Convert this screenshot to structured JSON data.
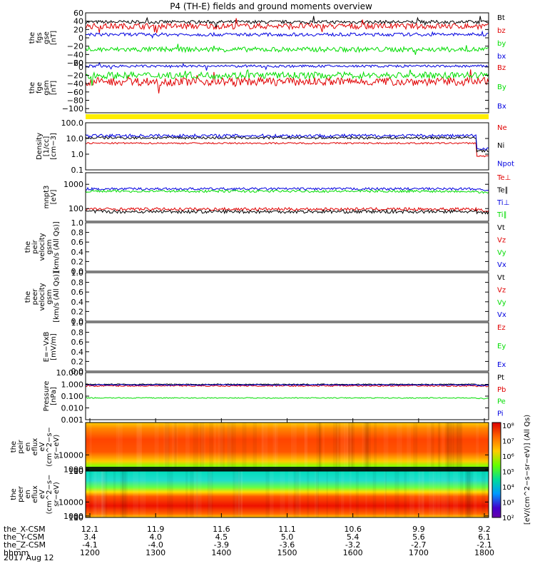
{
  "title": "P4 (TH-E) fields and ground moments overview",
  "date": "2017 Aug 12",
  "colors": {
    "black": "#000000",
    "red": "#e00000",
    "green": "#00dd00",
    "blue": "#0000e0",
    "yellow": "#ffee00"
  },
  "chart_data": {
    "type": "line",
    "x_range": [
      "12:00",
      "18:00"
    ],
    "x_ticks": [
      "1200",
      "1300",
      "1400",
      "1500",
      "1600",
      "1700",
      "1800"
    ],
    "ephemeris": [
      {
        "label": "the_X-CSM",
        "values": [
          "12.1",
          "11.9",
          "11.6",
          "11.1",
          "10.6",
          "9.9",
          "9.2"
        ]
      },
      {
        "label": "the_Y-CSM",
        "values": [
          "3.4",
          "4.0",
          "4.5",
          "5.0",
          "5.4",
          "5.6",
          "6.1"
        ]
      },
      {
        "label": "the_Z-CSM",
        "values": [
          "-4.1",
          "-4.0",
          "-3.9",
          "-3.6",
          "-3.2",
          "-2.7",
          "-2.1"
        ]
      },
      {
        "label": "hhmm",
        "values": []
      }
    ],
    "panels": [
      {
        "id": "fgs",
        "ylabel": [
          "the",
          "fgs",
          "gse",
          "[nT]"
        ],
        "ylim": [
          -60,
          60
        ],
        "yticks": [
          "60",
          "40",
          "20",
          "0",
          "−20",
          "−40",
          "−60"
        ],
        "ytickvals": [
          60,
          40,
          20,
          0,
          -20,
          -40,
          -60
        ],
        "series": [
          {
            "name": "Bt",
            "color": "black",
            "level": 38,
            "noise": 4
          },
          {
            "name": "bz",
            "color": "red",
            "level": 28,
            "noise": 7
          },
          {
            "name": "by",
            "color": "green",
            "level": -28,
            "noise": 6
          },
          {
            "name": "bx",
            "color": "blue",
            "level": 8,
            "noise": 4
          }
        ]
      },
      {
        "id": "fge",
        "ylabel": [
          "the",
          "fge",
          "gsm",
          "[nT]"
        ],
        "ylim": [
          -110,
          10
        ],
        "yticks": [
          "20",
          "0",
          "−20",
          "−40",
          "−60",
          "−80",
          "−100"
        ],
        "ytickvals": [
          20,
          0,
          -20,
          -40,
          -60,
          -80,
          -100
        ],
        "series": [
          {
            "name": "Bz",
            "color": "red",
            "level": -35,
            "noise": 10
          },
          {
            "name": "By",
            "color": "green",
            "level": -20,
            "noise": 8
          },
          {
            "name": "Bx",
            "color": "blue",
            "level": 2,
            "noise": 3
          }
        ]
      },
      {
        "id": "density",
        "ylabel": [
          "Density",
          "[1/cc]",
          "[cm−3]"
        ],
        "log": true,
        "ylim": [
          0.1,
          100
        ],
        "yticks": [
          "100.0",
          "10.0",
          "1.0",
          "0.1"
        ],
        "ytickvals": [
          100,
          10,
          1,
          0.1
        ],
        "series": [
          {
            "name": "Ne",
            "color": "red",
            "level": 5,
            "noise": 0.05
          },
          {
            "name": "Ni",
            "color": "black",
            "level": 11,
            "noise": 0.08
          },
          {
            "name": "Npot",
            "color": "blue",
            "level": 15,
            "noise": 0.1
          }
        ]
      },
      {
        "id": "temp",
        "ylabel": [
          "mnpt3",
          "[eV]"
        ],
        "log": true,
        "ylim": [
          30,
          3000
        ],
        "yticks": [
          "1000",
          "100"
        ],
        "ytickvals": [
          1000,
          100
        ],
        "series": [
          {
            "name": "Te⊥",
            "color": "red",
            "level": 95,
            "noise": 0.06
          },
          {
            "name": "Te∥",
            "color": "black",
            "level": 75,
            "noise": 0.07
          },
          {
            "name": "Ti⊥",
            "color": "blue",
            "level": 650,
            "noise": 0.05
          },
          {
            "name": "Ti∥",
            "color": "green",
            "level": 520,
            "noise": 0.05
          }
        ]
      },
      {
        "id": "peir_vel",
        "ylabel": [
          "the",
          "peir",
          "velocity",
          "gsm",
          "[km/s (All Qs)]"
        ],
        "ylim": [
          0,
          1
        ],
        "yticks": [
          "1.0",
          "0.8",
          "0.6",
          "0.4",
          "0.2",
          "0.0"
        ],
        "ytickvals": [
          1,
          0.8,
          0.6,
          0.4,
          0.2,
          0
        ],
        "series": [
          {
            "name": "Vt",
            "color": "black"
          },
          {
            "name": "Vz",
            "color": "red"
          },
          {
            "name": "Vy",
            "color": "green"
          },
          {
            "name": "Vx",
            "color": "blue"
          }
        ]
      },
      {
        "id": "peer_vel",
        "ylabel": [
          "the",
          "peer",
          "velocity",
          "gsm",
          "[km/s (All Qs)]"
        ],
        "ylim": [
          0,
          1
        ],
        "yticks": [
          "1.0",
          "0.8",
          "0.6",
          "0.4",
          "0.2",
          "0.0"
        ],
        "ytickvals": [
          1,
          0.8,
          0.6,
          0.4,
          0.2,
          0
        ],
        "series": [
          {
            "name": "Vt",
            "color": "black"
          },
          {
            "name": "Vz",
            "color": "red"
          },
          {
            "name": "Vy",
            "color": "green"
          },
          {
            "name": "Vx",
            "color": "blue"
          }
        ]
      },
      {
        "id": "efield",
        "ylabel": [
          "E=−VxB",
          "[mV/m]"
        ],
        "ylim": [
          0,
          1
        ],
        "yticks": [
          "1.0",
          "0.8",
          "0.6",
          "0.4",
          "0.2",
          "0.0"
        ],
        "ytickvals": [
          1,
          0.8,
          0.6,
          0.4,
          0.2,
          0
        ],
        "series": [
          {
            "name": "Ez",
            "color": "red"
          },
          {
            "name": "Ey",
            "color": "green"
          },
          {
            "name": "Ex",
            "color": "blue"
          }
        ]
      },
      {
        "id": "pressure",
        "ylabel": [
          "Pressure",
          "[nPa]"
        ],
        "log": true,
        "ylim": [
          0.001,
          10
        ],
        "yticks": [
          "10.000",
          "1.000",
          "0.100",
          "0.010",
          "0.001"
        ],
        "ytickvals": [
          10,
          1,
          0.1,
          0.01,
          0.001
        ],
        "series": [
          {
            "name": "Pt",
            "color": "black",
            "level": 1.0,
            "noise": 0.04
          },
          {
            "name": "Pb",
            "color": "red",
            "level": 0.75,
            "noise": 0.06
          },
          {
            "name": "Pe",
            "color": "green",
            "level": 0.07,
            "noise": 0.04
          },
          {
            "name": "Pi",
            "color": "blue",
            "level": 0.9,
            "noise": 0.04
          }
        ]
      },
      {
        "id": "peir_spec",
        "type": "heatmap",
        "ylabel": [
          "the",
          "peir",
          "en",
          "eflux",
          "eV",
          "(cm^2−s−",
          "sr−eV)"
        ],
        "yticks": [
          "10000",
          "1000",
          "100",
          "10"
        ],
        "ytickvals": [
          10000,
          1000,
          100,
          10
        ],
        "ylim": [
          5,
          30000
        ]
      },
      {
        "id": "peer_spec",
        "type": "heatmap",
        "ylabel": [
          "the",
          "peer",
          "en",
          "eflux",
          "eV",
          "(cm^2−s−",
          "sr−eV)"
        ],
        "yticks": [
          "10000",
          "1000",
          "100",
          "10"
        ],
        "ytickvals": [
          10000,
          1000,
          100,
          10
        ],
        "ylim": [
          5,
          30000
        ]
      }
    ],
    "colorbar": {
      "label": "[eV/(cm^2−s−sr−eV)] (All Qs)",
      "ticks": [
        "10⁸",
        "10⁷",
        "10⁶",
        "10⁵",
        "10⁴",
        "10³",
        "10²"
      ]
    }
  }
}
